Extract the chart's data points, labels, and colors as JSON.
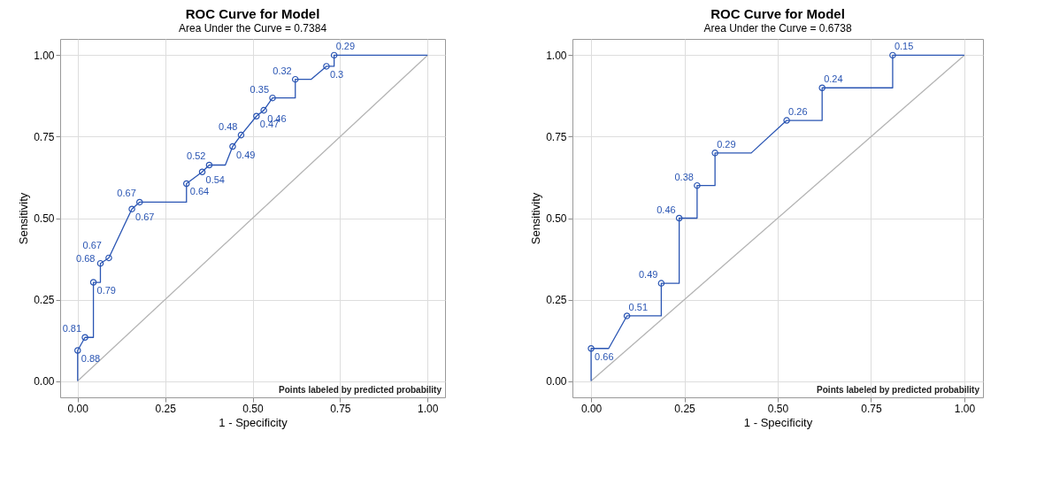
{
  "chart_data": [
    {
      "type": "line",
      "title": "ROC Curve for Model",
      "subtitle": "Area Under the Curve = 0.7384",
      "xlabel": "1 - Specificity",
      "ylabel": "Sensitivity",
      "xlim": [
        -0.05,
        1.05
      ],
      "ylim": [
        -0.05,
        1.05
      ],
      "xticks": [
        {
          "value": 0,
          "label": "0.00"
        },
        {
          "value": 0.25,
          "label": "0.25"
        },
        {
          "value": 0.5,
          "label": "0.50"
        },
        {
          "value": 0.75,
          "label": "0.75"
        },
        {
          "value": 1,
          "label": "1.00"
        }
      ],
      "yticks": [
        {
          "value": 0,
          "label": "0.00"
        },
        {
          "value": 0.25,
          "label": "0.25"
        },
        {
          "value": 0.5,
          "label": "0.50"
        },
        {
          "value": 0.75,
          "label": "0.75"
        },
        {
          "value": 1,
          "label": "1.00"
        }
      ],
      "grid": true,
      "annotations": [
        "Points labeled by predicted probability",
        {
          "text": "0.88",
          "x": 0,
          "y": 0.094
        },
        {
          "text": "0.81",
          "x": 0.021,
          "y": 0.134
        },
        {
          "text": "0.79",
          "x": 0.045,
          "y": 0.303
        },
        {
          "text": "0.68",
          "x": 0.065,
          "y": 0.361
        },
        {
          "text": "0.67",
          "x": 0.089,
          "y": 0.378
        },
        {
          "text": "0.67",
          "x": 0.155,
          "y": 0.528
        },
        {
          "text": "0.67",
          "x": 0.177,
          "y": 0.549
        },
        {
          "text": "0.64",
          "x": 0.311,
          "y": 0.606
        },
        {
          "text": "0.54",
          "x": 0.356,
          "y": 0.642
        },
        {
          "text": "0.52",
          "x": 0.376,
          "y": 0.663
        },
        {
          "text": "0.49",
          "x": 0.443,
          "y": 0.72
        },
        {
          "text": "0.48",
          "x": 0.467,
          "y": 0.755
        },
        {
          "text": "0.47",
          "x": 0.511,
          "y": 0.813
        },
        {
          "text": "0.46",
          "x": 0.532,
          "y": 0.831
        },
        {
          "text": "0.35",
          "x": 0.557,
          "y": 0.869
        },
        {
          "text": "0.32",
          "x": 0.622,
          "y": 0.926
        },
        {
          "text": "0.3",
          "x": 0.711,
          "y": 0.966
        },
        {
          "text": "0.29",
          "x": 0.733,
          "y": 1
        }
      ],
      "series": [
        {
          "color": "#b4b4b4",
          "x": [
            0,
            1
          ],
          "values": [
            0,
            1
          ]
        },
        {
          "color": "#2a55b3",
          "x": [
            0,
            0,
            0.021,
            0.045,
            0.045,
            0.065,
            0.065,
            0.089,
            0.155,
            0.177,
            0.311,
            0.311,
            0.356,
            0.376,
            0.422,
            0.443,
            0.467,
            0.511,
            0.532,
            0.557,
            0.622,
            0.622,
            0.667,
            0.711,
            0.733,
            0.733,
            1
          ],
          "values": [
            0,
            0.094,
            0.134,
            0.134,
            0.303,
            0.303,
            0.361,
            0.378,
            0.528,
            0.549,
            0.549,
            0.606,
            0.642,
            0.663,
            0.663,
            0.72,
            0.755,
            0.813,
            0.831,
            0.869,
            0.869,
            0.926,
            0.926,
            0.966,
            0.966,
            1,
            1
          ]
        },
        {
          "type": "scatter",
          "marker": "circle",
          "color": "#2a55b3",
          "x": [
            0,
            0.021,
            0.045,
            0.065,
            0.089,
            0.155,
            0.177,
            0.311,
            0.356,
            0.376,
            0.443,
            0.467,
            0.511,
            0.532,
            0.557,
            0.622,
            0.711,
            0.733
          ],
          "values": [
            0.094,
            0.134,
            0.303,
            0.361,
            0.378,
            0.528,
            0.549,
            0.606,
            0.642,
            0.663,
            0.72,
            0.755,
            0.813,
            0.831,
            0.869,
            0.926,
            0.966,
            1
          ]
        }
      ]
    },
    {
      "type": "line",
      "title": "ROC Curve for Model",
      "subtitle": "Area Under the Curve = 0.6738",
      "xlabel": "1 - Specificity",
      "ylabel": "Sensitivity",
      "xlim": [
        -0.05,
        1.05
      ],
      "ylim": [
        -0.05,
        1.05
      ],
      "xticks": [
        {
          "value": 0,
          "label": "0.00"
        },
        {
          "value": 0.25,
          "label": "0.25"
        },
        {
          "value": 0.5,
          "label": "0.50"
        },
        {
          "value": 0.75,
          "label": "0.75"
        },
        {
          "value": 1,
          "label": "1.00"
        }
      ],
      "yticks": [
        {
          "value": 0,
          "label": "0.00"
        },
        {
          "value": 0.25,
          "label": "0.25"
        },
        {
          "value": 0.5,
          "label": "0.50"
        },
        {
          "value": 0.75,
          "label": "0.75"
        },
        {
          "value": 1,
          "label": "1.00"
        }
      ],
      "grid": true,
      "annotations": [
        "Points labeled by predicted probability",
        {
          "text": "0.66",
          "x": 0,
          "y": 0.1
        },
        {
          "text": "0.51",
          "x": 0.096,
          "y": 0.2
        },
        {
          "text": "0.49",
          "x": 0.188,
          "y": 0.3
        },
        {
          "text": "0.46",
          "x": 0.236,
          "y": 0.5
        },
        {
          "text": "0.38",
          "x": 0.284,
          "y": 0.6
        },
        {
          "text": "0.29",
          "x": 0.332,
          "y": 0.7
        },
        {
          "text": "0.26",
          "x": 0.524,
          "y": 0.8
        },
        {
          "text": "0.24",
          "x": 0.619,
          "y": 0.9
        },
        {
          "text": "0.15",
          "x": 0.808,
          "y": 1
        }
      ],
      "series": [
        {
          "color": "#b4b4b4",
          "x": [
            0,
            1
          ],
          "values": [
            0,
            1
          ]
        },
        {
          "color": "#2a55b3",
          "x": [
            0,
            0,
            0.047,
            0.096,
            0.188,
            0.188,
            0.236,
            0.236,
            0.284,
            0.284,
            0.332,
            0.332,
            0.429,
            0.524,
            0.619,
            0.619,
            0.808,
            0.808,
            1
          ],
          "values": [
            0,
            0.1,
            0.1,
            0.2,
            0.2,
            0.3,
            0.3,
            0.5,
            0.5,
            0.6,
            0.6,
            0.7,
            0.7,
            0.8,
            0.8,
            0.9,
            0.9,
            1,
            1
          ]
        },
        {
          "type": "scatter",
          "marker": "circle",
          "color": "#2a55b3",
          "x": [
            0,
            0.096,
            0.188,
            0.236,
            0.284,
            0.332,
            0.524,
            0.619,
            0.808
          ],
          "values": [
            0.1,
            0.2,
            0.3,
            0.5,
            0.6,
            0.7,
            0.8,
            0.9,
            1
          ]
        }
      ]
    }
  ]
}
